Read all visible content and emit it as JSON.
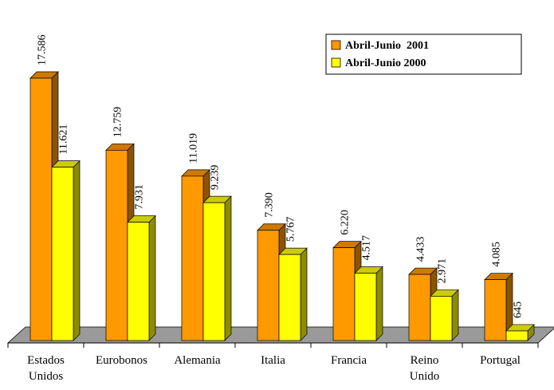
{
  "chart_data": {
    "type": "bar",
    "categories": [
      [
        "Estados",
        "Unidos"
      ],
      [
        "Eurobonos"
      ],
      [
        "Alemania"
      ],
      [
        "Italia"
      ],
      [
        "Francia"
      ],
      [
        "Reino",
        "Unido"
      ],
      [
        "Portugal"
      ]
    ],
    "series": [
      {
        "name": "Abril-Junio  2001",
        "values": [
          17586,
          12759,
          11019,
          7390,
          6220,
          4433,
          4085
        ],
        "labels": [
          "17.586",
          "12.759",
          "11.019",
          "7.390",
          "6.220",
          "4.433",
          "4.085"
        ],
        "color": "#ff9900"
      },
      {
        "name": "Abril-Junio 2000",
        "values": [
          11621,
          7931,
          9239,
          5767,
          4517,
          2971,
          645
        ],
        "labels": [
          "11.621",
          "7.931",
          "9.239",
          "5.767",
          "4.517",
          "2.971",
          "645"
        ],
        "color": "#ffff00"
      }
    ],
    "legend_position": "top-right",
    "grid": false,
    "ylim": [
      0,
      18000
    ]
  }
}
